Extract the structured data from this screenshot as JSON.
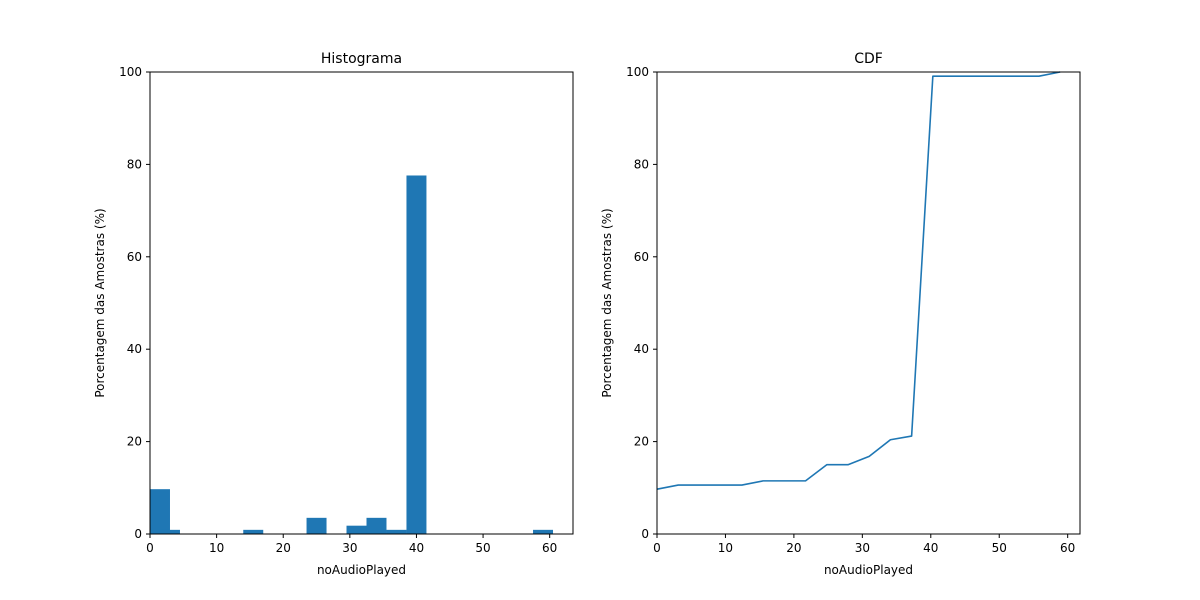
{
  "chart_data": [
    {
      "type": "bar",
      "title": "Histograma",
      "xlabel": "noAudioPlayed",
      "ylabel": "Porcentagem das Amostras (%)",
      "xlim": [
        0,
        63.5
      ],
      "ylim": [
        0,
        100
      ],
      "xticks": [
        0,
        10,
        20,
        30,
        40,
        50,
        60
      ],
      "yticks": [
        0,
        20,
        40,
        60,
        80,
        100
      ],
      "bin_width": 3,
      "bins": [
        {
          "x": 0,
          "value": 9.7
        },
        {
          "x": 1.5,
          "value": 0.9
        },
        {
          "x": 14,
          "value": 0.9
        },
        {
          "x": 23.5,
          "value": 3.5
        },
        {
          "x": 29.5,
          "value": 1.8
        },
        {
          "x": 32.5,
          "value": 3.5
        },
        {
          "x": 35.5,
          "value": 0.9
        },
        {
          "x": 38.5,
          "value": 77.6
        },
        {
          "x": 57.5,
          "value": 0.9
        }
      ],
      "color": "#1f77b4"
    },
    {
      "type": "line",
      "title": "CDF",
      "xlabel": "noAudioPlayed",
      "ylabel": "Porcentagem das Amostras (%)",
      "xlim": [
        0,
        61.8
      ],
      "ylim": [
        0,
        100
      ],
      "xticks": [
        0,
        10,
        20,
        30,
        40,
        50,
        60
      ],
      "yticks": [
        0,
        20,
        40,
        60,
        80,
        100
      ],
      "series": [
        {
          "x": [
            0,
            3.1,
            6.2,
            9.3,
            12.4,
            15.5,
            18.6,
            21.7,
            24.8,
            27.9,
            31.0,
            34.1,
            37.2,
            40.3,
            43.4,
            46.5,
            49.6,
            52.7,
            55.8,
            58.9
          ],
          "y": [
            9.7,
            10.6,
            10.6,
            10.6,
            10.6,
            11.5,
            11.5,
            11.5,
            15.0,
            15.0,
            16.8,
            20.4,
            21.2,
            99.1,
            99.1,
            99.1,
            99.1,
            99.1,
            99.1,
            100.0
          ]
        }
      ],
      "color": "#1f77b4"
    }
  ]
}
